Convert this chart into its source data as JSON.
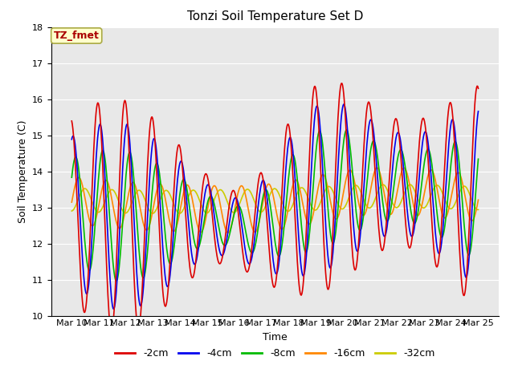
{
  "title": "Tonzi Soil Temperature Set D",
  "xlabel": "Time",
  "ylabel": "Soil Temperature (C)",
  "ylim": [
    10.0,
    18.0
  ],
  "yticks": [
    10.0,
    11.0,
    12.0,
    13.0,
    14.0,
    15.0,
    16.0,
    17.0,
    18.0
  ],
  "xtick_labels": [
    "Mar 10",
    "Mar 11",
    "Mar 12",
    "Mar 13",
    "Mar 14",
    "Mar 15",
    "Mar 16",
    "Mar 17",
    "Mar 18",
    "Mar 19",
    "Mar 20",
    "Mar 21",
    "Mar 22",
    "Mar 23",
    "Mar 24",
    "Mar 25"
  ],
  "legend_labels": [
    "-2cm",
    "-4cm",
    "-8cm",
    "-16cm",
    "-32cm"
  ],
  "legend_colors": [
    "#dd0000",
    "#0000ee",
    "#00bb00",
    "#ff8800",
    "#cccc00"
  ],
  "line_widths": [
    1.2,
    1.2,
    1.2,
    1.2,
    1.2
  ],
  "annotation_text": "TZ_fmet",
  "annotation_box_color": "#ffffcc",
  "annotation_text_color": "#aa0000",
  "background_color": "#e8e8e8",
  "grid_color": "#ffffff",
  "n_points": 720,
  "time_days": 15
}
